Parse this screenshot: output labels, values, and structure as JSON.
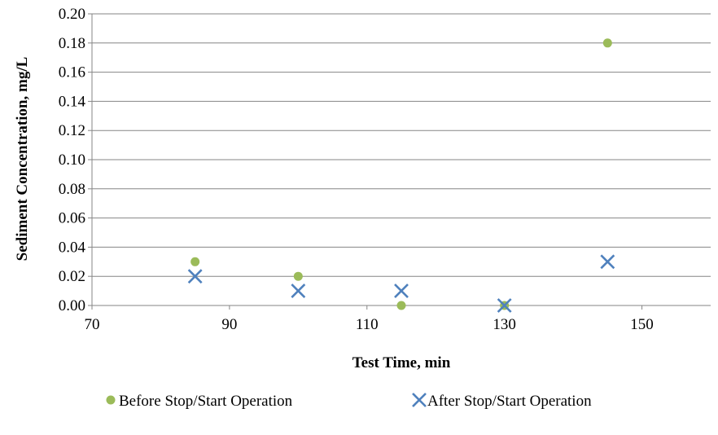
{
  "chart_data": {
    "type": "scatter",
    "title": "",
    "xlabel": "Test Time, min",
    "ylabel": "Sediment Concentration, mg/L",
    "xlim": [
      70,
      160
    ],
    "ylim": [
      0,
      0.2
    ],
    "x_ticks": [
      "70",
      "90",
      "110",
      "130",
      "150"
    ],
    "x_tick_values": [
      70,
      90,
      110,
      130,
      150
    ],
    "y_ticks": [
      "0.00",
      "0.02",
      "0.04",
      "0.06",
      "0.08",
      "0.10",
      "0.12",
      "0.14",
      "0.16",
      "0.18",
      "0.20"
    ],
    "y_tick_values": [
      0,
      0.02,
      0.04,
      0.06,
      0.08,
      0.1,
      0.12,
      0.14,
      0.16,
      0.18,
      0.2
    ],
    "grid": "horizontal",
    "legend_position": "bottom",
    "series": [
      {
        "name": "Before Stop/Start Operation",
        "marker": "circle",
        "color": "#9BBB59",
        "x": [
          85,
          100,
          115,
          130,
          145
        ],
        "y": [
          0.03,
          0.02,
          0.0,
          0.0,
          0.18
        ]
      },
      {
        "name": "After Stop/Start Operation",
        "marker": "x",
        "color": "#4F81BD",
        "x": [
          85,
          100,
          115,
          130,
          145
        ],
        "y": [
          0.02,
          0.01,
          0.01,
          0.0,
          0.03
        ]
      }
    ]
  }
}
